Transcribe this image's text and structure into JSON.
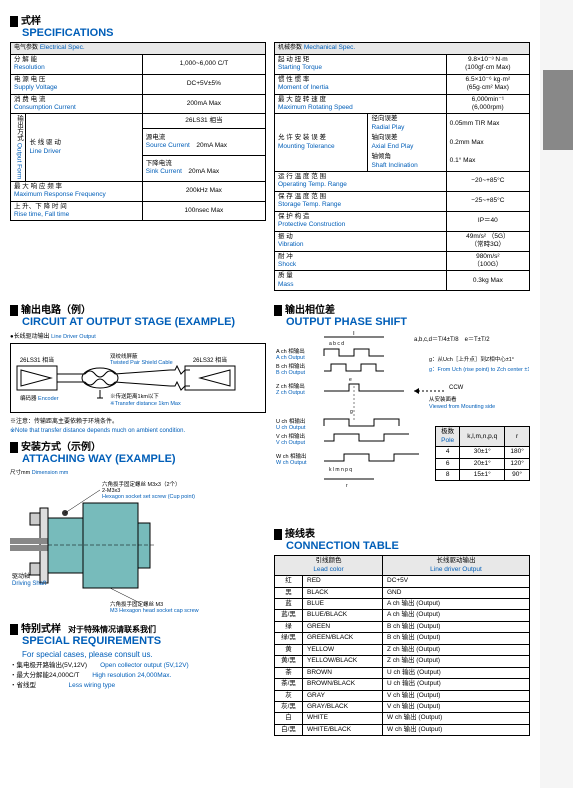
{
  "titles": {
    "spec_cn": "式样",
    "spec_en": "SPECIFICATIONS",
    "circuit_cn": "输出电路（例）",
    "circuit_en": "CIRCUIT AT OUTPUT STAGE (EXAMPLE)",
    "attach_cn": "安装方式（示例）",
    "attach_en": "ATTACHING WAY (EXAMPLE)",
    "special_cn": "特别式样",
    "special_cn2": "对于特殊情况请联系我们",
    "special_en": "SPECIAL REQUIREMENTS",
    "special_en2": "For special cases, please consult us.",
    "phase_cn": "输出相位差",
    "phase_en": "OUTPUT PHASE SHIFT",
    "conn_cn": "接线表",
    "conn_en": "CONNECTION TABLE"
  },
  "elec_spec": {
    "header_cn": "电气参数",
    "header_en": "Electrical Spec.",
    "rows": [
      {
        "lcn": "分        解        能",
        "len": "Resolution",
        "val": "1,000~6,000 C/T"
      },
      {
        "lcn": "电    源    电    压",
        "len": "Supply Voltage",
        "val": "DC+5V±5%"
      },
      {
        "lcn": "消    费    电    流",
        "len": "Consumption Current",
        "val": "200mA Max"
      }
    ],
    "output_form_cn": "输出方式",
    "output_form_en": "Output Form",
    "line_driver_cn": "长  线  驱  动",
    "line_driver_en": "Line Driver",
    "model": "26LS31 相当",
    "src_cn": "源电流",
    "src_en": "Source Current",
    "src_val": "20mA Max",
    "sink_cn": "下降电流",
    "sink_en": "Sink Current",
    "sink_val": "20mA Max",
    "mrf_cn": "最 大 响 应 频 率",
    "mrf_en": "Maximum Response Frequency",
    "mrf_val": "200kHz Max",
    "rise_cn": "上 升、下 降 时 间",
    "rise_en": "Rise time, Fall time",
    "rise_val": "100nsec Max"
  },
  "mech_spec": {
    "header_cn": "机械参数",
    "header_en": "Mechanical Spec.",
    "rows": [
      {
        "lcn": "起    动    扭    矩",
        "len": "Starting Torque",
        "val": "9.8×10⁻³ N·m\n(100gf·cm Max)"
      },
      {
        "lcn": "惯    性    惯    率",
        "len": "Moment of Inertia",
        "val": "6.5×10⁻⁶ kg·m²\n(65g·cm² Max)"
      },
      {
        "lcn": "最 大 旋 转 速 度",
        "len": "Maximum Rotating Speed",
        "val": "6,000min⁻¹\n(6,000rpm)"
      }
    ],
    "mt_cn": "允 许 安 装 误 差",
    "mt_en": "Mounting Tolerance",
    "mt_items": [
      {
        "cn": "径向误差",
        "en": "Radial Play",
        "val": "0.05mm TIR Max"
      },
      {
        "cn": "轴向误差",
        "en": "Axial End Play",
        "val": "0.2mm Max"
      },
      {
        "cn": "轴倾角",
        "en": "Shaft Inclination",
        "val": "0.1° Max"
      }
    ],
    "rows2": [
      {
        "lcn": "运 行 温 度 范 围",
        "len": "Operating Temp. Range",
        "val": "−20~+85°C"
      },
      {
        "lcn": "保 存 温 度 范 围",
        "len": "Storage Temp. Range",
        "val": "−25~+85°C"
      },
      {
        "lcn": "保    护    构    造",
        "len": "Protective Construction",
        "val": "IP＝40"
      },
      {
        "lcn": "振                动",
        "len": "Vibration",
        "val": "49m/s² （5G）\n（常時3Ω）"
      },
      {
        "lcn": "耐                冲",
        "len": "Shock",
        "val": "980m/s²\n（100G）"
      },
      {
        "lcn": "质                量",
        "len": "Mass",
        "val": "0.3kg Max"
      }
    ]
  },
  "circuit": {
    "sub_cn": "长线驱动输出",
    "sub_en": "Line Driver Output",
    "left": "26LS31 相当",
    "right": "26LS32 相当",
    "cable_cn": "双绞线屏蔽",
    "cable_en": "Twisted Pair Shield Cable",
    "enc_cn": "编码器",
    "enc_en": "Encoder",
    "dist_cn": "传送距离1km以下",
    "dist_en": "Transfer distance 1km Max",
    "note_cn": "※注意：传输距离主要依赖于环境条件。",
    "note_en": "※Note that transfer distance depends much on ambient condition."
  },
  "attach": {
    "dim_cn": "尺寸mm",
    "dim_en": "Dimension mm",
    "hex_cn": "六角扳手固定螺丝 M3x3（2个）",
    "hex_sub": "2-M3x3",
    "hex_en": "Hexagon socket set screw (Cup point)",
    "shaft_cn": "驱动轴",
    "shaft_en": "Driving Shaft",
    "cap_cn": "六角扳手固定螺丝 M3",
    "cap_en": "M3 Hexagon head socket cap screw"
  },
  "special": {
    "items_cn": [
      "・集电极开路输出(5V,12V)",
      "・最大分解能24,000C/T",
      "・省线型"
    ],
    "items_en": [
      "Open collector output (5V,12V)",
      "High resolution 24,000Max.",
      "Less wiring type"
    ]
  },
  "phase": {
    "ach_cn": "A ch 相输出",
    "ach_en": "A ch Output",
    "bch_cn": "B ch 相输出",
    "bch_en": "B ch Output",
    "zch_cn": "Z ch 相输出",
    "zch_en": "Z ch Output",
    "uch_cn": "U ch 相输出",
    "uch_en": "U ch Output",
    "vch_cn": "V ch 相输出",
    "vch_en": "V ch Output",
    "wch_cn": "W ch 相输出",
    "wch_en": "W ch Output",
    "formula": "a,b,c,d＝T/4±T/8　e＝T±T/2",
    "ccw": "CCW",
    "view_cn": "从安装面看",
    "view_en": "Viewed from Mounting side",
    "g_cn": "g：从Uch［上升点］到Z相中心±1°",
    "g_en": "g：From Uch (rise point) to Zch center ±1°",
    "pole_tbl": {
      "h1": "极数",
      "h1e": "Pole",
      "h2": "k,l,m,n,p,q",
      "h3": "r",
      "rows": [
        {
          "p": "4",
          "k": "30±1°",
          "r": "180°"
        },
        {
          "p": "6",
          "k": "20±1°",
          "r": "120°"
        },
        {
          "p": "8",
          "k": "15±1°",
          "r": "90°"
        }
      ]
    }
  },
  "conn": {
    "h1_cn": "引线颜色",
    "h1_en": "Lead color",
    "h2_cn": "长线驱动输出",
    "h2_en": "Line driver Output",
    "rows": [
      {
        "c": "红",
        "e": "RED",
        "o": "DC+5V"
      },
      {
        "c": "黑",
        "e": "BLACK",
        "o": "GND"
      },
      {
        "c": "蓝",
        "e": "BLUE",
        "o": "A ch 输出 (Output)"
      },
      {
        "c": "蓝/黑",
        "e": "BLUE/BLACK",
        "o": "A ch 输出 (Output)"
      },
      {
        "c": "绿",
        "e": "GREEN",
        "o": "B ch 输出 (Output)"
      },
      {
        "c": "绿/黑",
        "e": "GREEN/BLACK",
        "o": "B ch 输出 (Output)"
      },
      {
        "c": "黄",
        "e": "YELLOW",
        "o": "Z ch 输出 (Output)"
      },
      {
        "c": "黄/黑",
        "e": "YELLOW/BLACK",
        "o": "Z ch 输出 (Output)"
      },
      {
        "c": "茶",
        "e": "BROWN",
        "o": "U ch 输出 (Output)"
      },
      {
        "c": "茶/黑",
        "e": "BROWN/BLACK",
        "o": "U ch 输出 (Output)"
      },
      {
        "c": "灰",
        "e": "GRAY",
        "o": "V ch 输出 (Output)"
      },
      {
        "c": "灰/黑",
        "e": "GRAY/BLACK",
        "o": "V ch 输出 (Output)"
      },
      {
        "c": "白",
        "e": "WHITE",
        "o": "W ch 输出 (Output)"
      },
      {
        "c": "白/黑",
        "e": "WHITE/BLACK",
        "o": "W ch 输出 (Output)"
      }
    ]
  },
  "colors": {
    "blue": "#005eb8",
    "gray": "#e8e8e8",
    "side": "#888"
  }
}
